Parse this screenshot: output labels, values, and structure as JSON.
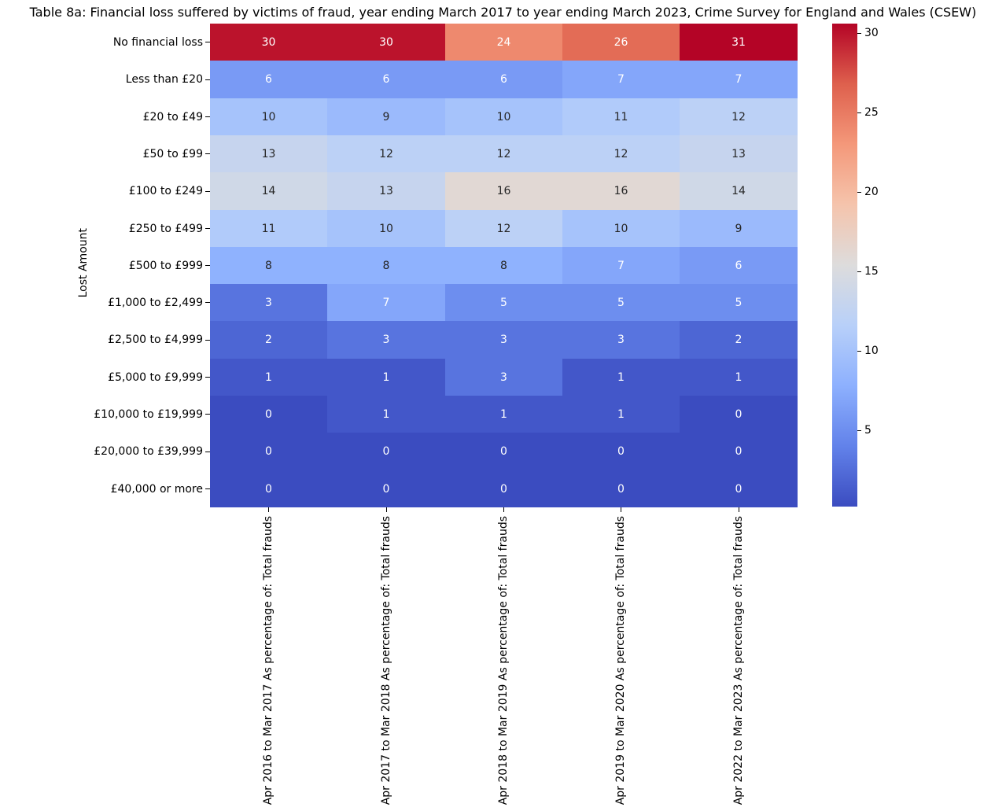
{
  "title": "Table 8a: Financial loss suffered by victims of fraud, year ending March 2017 to year ending March 2023, Crime Survey for England and Wales (CSEW)",
  "chart_data": {
    "type": "heatmap",
    "title": "Table 8a: Financial loss suffered by victims of fraud, year ending March 2017 to year ending March 2023, Crime Survey for England and Wales (CSEW)",
    "xlabel": "",
    "ylabel": "Lost Amount",
    "rows": [
      "No financial loss",
      "Less than £20",
      "£20 to £49",
      "£50 to £99",
      "£100 to £249",
      "£250 to £499",
      "£500 to £999",
      "£1,000 to £2,499",
      "£2,500 to £4,999",
      "£5,000 to £9,999",
      "£10,000 to £19,999",
      "£20,000 to £39,999",
      "£40,000 or more"
    ],
    "columns": [
      "Apr 2016 to Mar 2017 As percentage of: Total frauds",
      "Apr 2017 to Mar 2018 As percentage of: Total frauds",
      "Apr 2018 to Mar 2019 As percentage of: Total frauds",
      "Apr 2019 to Mar 2020 As percentage of: Total frauds",
      "Apr 2022 to Mar 2023 As percentage of: Total frauds"
    ],
    "values": [
      [
        30,
        30,
        24,
        26,
        31
      ],
      [
        6,
        6,
        6,
        7,
        7
      ],
      [
        10,
        9,
        10,
        11,
        12
      ],
      [
        13,
        12,
        12,
        12,
        13
      ],
      [
        14,
        13,
        16,
        16,
        14
      ],
      [
        11,
        10,
        12,
        10,
        9
      ],
      [
        8,
        8,
        8,
        7,
        6
      ],
      [
        3,
        7,
        5,
        5,
        5
      ],
      [
        2,
        3,
        3,
        3,
        2
      ],
      [
        1,
        1,
        3,
        1,
        1
      ],
      [
        0,
        1,
        1,
        1,
        0
      ],
      [
        0,
        0,
        0,
        0,
        0
      ],
      [
        0,
        0,
        0,
        0,
        0
      ]
    ],
    "annotated": true,
    "grid": false,
    "legend_position": "colorbar-right",
    "colormap": "coolwarm",
    "colormap_stops": [
      "#3B4CC0",
      "#6282EA",
      "#8DB0FE",
      "#B8D0F9",
      "#DDDCDC",
      "#F5C4AC",
      "#F4987A",
      "#DE604D",
      "#B40426"
    ],
    "annotation_text_dark": "#262626",
    "annotation_text_light": "#FFFFFF",
    "colorbar": {
      "ticks": [
        5,
        10,
        15,
        20,
        25,
        30
      ],
      "vmin": 0.2,
      "vmax": 30.6
    }
  }
}
